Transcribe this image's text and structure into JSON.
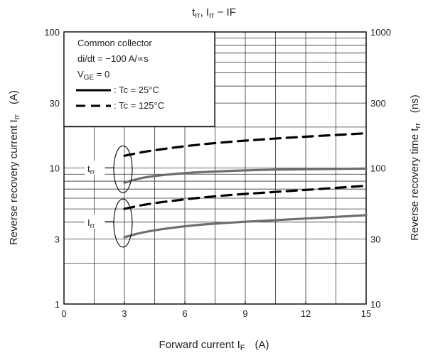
{
  "chart_data": {
    "type": "line",
    "title_main": "t",
    "title_sub1": "rr",
    "title_mid": ", I",
    "title_sub2": "rr",
    "title_tail": " − IF",
    "xlabel_main": "Forward current   I",
    "xlabel_sub": "F",
    "xlabel_unit": "(A)",
    "ylabel_left": "Reverse recovery current   I",
    "ylabel_left_sub": "rr",
    "ylabel_left_unit": "(A)",
    "ylabel_right": "Reverse recovery time   t",
    "ylabel_right_sub": "rr",
    "ylabel_right_unit": "(ns)",
    "xlim": [
      0,
      15
    ],
    "x_ticks": [
      0,
      3,
      6,
      9,
      12,
      15
    ],
    "y_left_scale": "log",
    "y_left_lim": [
      1,
      100
    ],
    "y_left_ticks": [
      1,
      3,
      10,
      30,
      100
    ],
    "y_right_scale": "log",
    "y_right_lim": [
      10,
      1000
    ],
    "y_right_ticks": [
      10,
      30,
      100,
      300,
      1000
    ],
    "grid": true,
    "legend": {
      "placement": "top-left",
      "lines": [
        "Common collector",
        "di/dt = −100 A/∝s"
      ],
      "vge_main": "V",
      "vge_sub": "GE",
      "vge_tail": " = 0",
      "entries": [
        {
          "style": "solid",
          "label": ": Tc = 25°C"
        },
        {
          "style": "dashed",
          "label": ": Tc = 125°C"
        }
      ]
    },
    "annotations": [
      {
        "main": "t",
        "sub": "rr",
        "group": "trr"
      },
      {
        "main": "I",
        "sub": "rr",
        "group": "irr"
      }
    ],
    "series": [
      {
        "group": "trr",
        "axis": "right",
        "style": "solid",
        "x": [
          3,
          4,
          6,
          8,
          10,
          12,
          15
        ],
        "y": [
          78,
          86,
          92,
          95,
          97,
          98,
          99
        ]
      },
      {
        "group": "trr",
        "axis": "right",
        "style": "dashed",
        "x": [
          3,
          4,
          6,
          8,
          10,
          12,
          15
        ],
        "y": [
          123,
          132,
          145,
          155,
          163,
          170,
          180
        ]
      },
      {
        "group": "irr",
        "axis": "left",
        "style": "solid",
        "x": [
          3,
          4,
          6,
          8,
          10,
          12,
          15
        ],
        "y": [
          3.1,
          3.4,
          3.75,
          3.95,
          4.1,
          4.25,
          4.5
        ]
      },
      {
        "group": "irr",
        "axis": "left",
        "style": "dashed",
        "x": [
          3,
          4,
          6,
          8,
          10,
          12,
          15
        ],
        "y": [
          5.0,
          5.4,
          5.9,
          6.3,
          6.6,
          6.9,
          7.4
        ]
      }
    ]
  }
}
